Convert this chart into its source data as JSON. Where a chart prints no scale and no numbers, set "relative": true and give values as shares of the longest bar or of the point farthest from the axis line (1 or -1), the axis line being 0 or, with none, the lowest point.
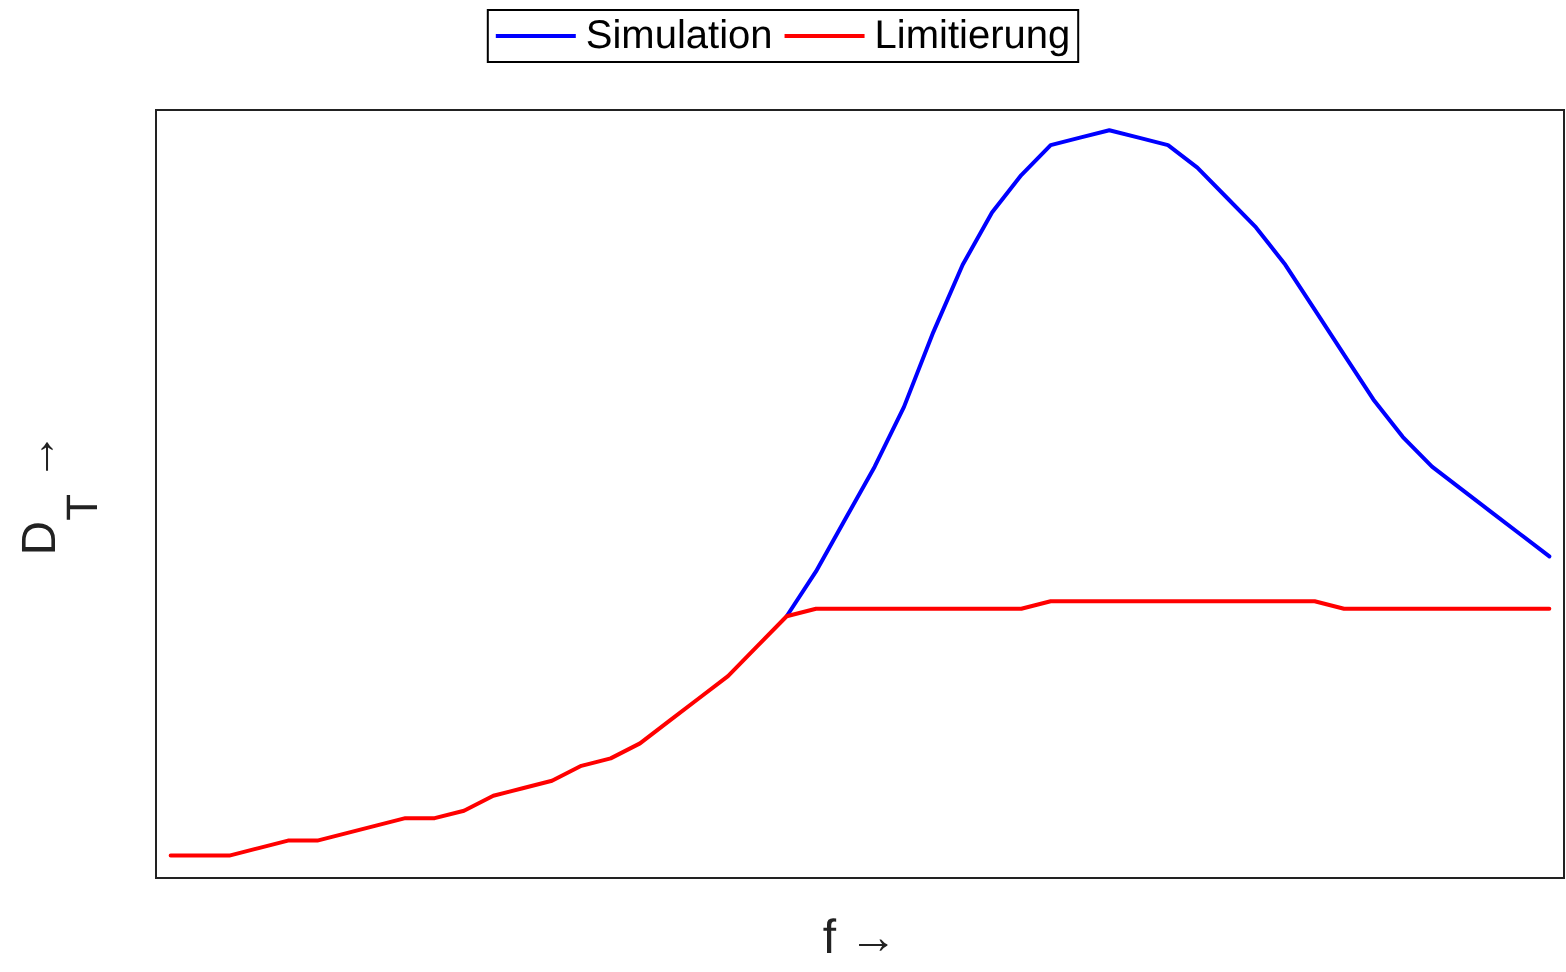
{
  "chart_data": {
    "type": "line",
    "relative": true,
    "xlabel": "f →",
    "ylabel": "D$_{T}$ →",
    "legend": "top",
    "grid": false,
    "marker": "none",
    "line_style": "solid",
    "categories": [
      null,
      null,
      null,
      null,
      null,
      null,
      null,
      null,
      null,
      null,
      null,
      null,
      null,
      null,
      null,
      null,
      null,
      null,
      null,
      null,
      null,
      null,
      null,
      null,
      null,
      null,
      null,
      null,
      null,
      null,
      null,
      null,
      null,
      null,
      null,
      null,
      null,
      null,
      null,
      null,
      null,
      null,
      null,
      null,
      null,
      null,
      null,
      null
    ],
    "series": [
      {
        "name": "Simulation",
        "color": "#0000ff",
        "values": [
          null,
          null,
          null,
          null,
          null,
          null,
          null,
          null,
          null,
          null,
          null,
          null,
          null,
          null,
          null,
          null,
          null,
          null,
          null,
          null,
          null,
          0.35,
          0.41,
          0.48,
          0.55,
          0.63,
          0.73,
          0.82,
          0.89,
          0.94,
          0.98,
          0.99,
          1,
          0.99,
          0.98,
          0.95,
          0.91,
          0.87,
          0.82,
          0.76,
          0.7,
          0.64,
          0.59,
          0.55,
          0.52,
          0.49,
          0.46,
          0.43
        ]
      },
      {
        "name": "Limitierung",
        "color": "#ff0000",
        "values": [
          0.03,
          0.03,
          0.03,
          0.04,
          0.05,
          0.05,
          0.06,
          0.07,
          0.08,
          0.08,
          0.09,
          0.11,
          0.12,
          0.13,
          0.15,
          0.16,
          0.18,
          0.21,
          0.24,
          0.27,
          0.31,
          0.35,
          0.36,
          0.36,
          0.36,
          0.36,
          0.36,
          0.36,
          0.36,
          0.36,
          0.37,
          0.37,
          0.37,
          0.37,
          0.37,
          0.37,
          0.37,
          0.37,
          0.37,
          0.37,
          0.36,
          0.36,
          0.36,
          0.36,
          0.36,
          0.36,
          0.36,
          0.36
        ]
      }
    ]
  }
}
